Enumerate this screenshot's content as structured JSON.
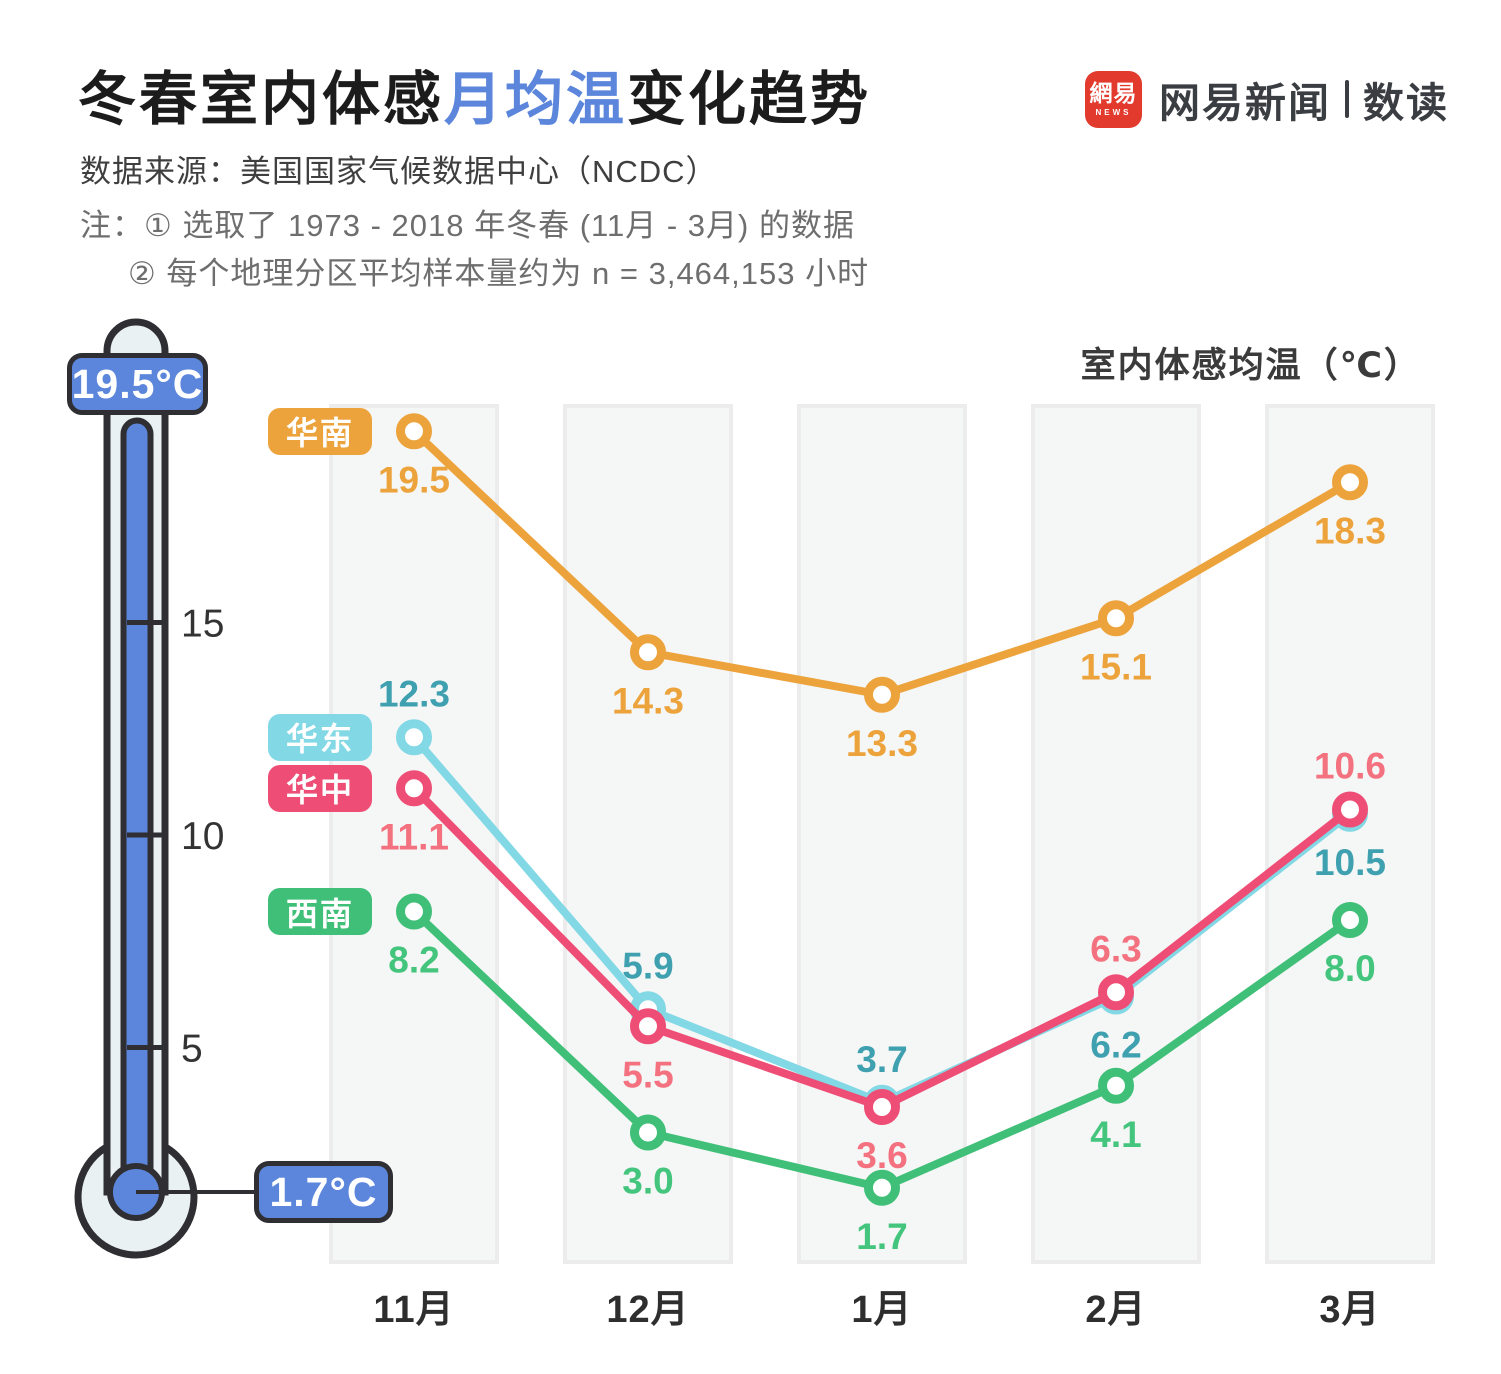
{
  "header": {
    "title_prefix": "冬春室内体感",
    "title_accent": "月均温",
    "title_suffix": "变化趋势",
    "accent_color": "#5B86DB",
    "source": "数据来源：美国国家气候数据中心（NCDC）",
    "note_line1": "注：① 选取了 1973 - 2018 年冬春 (11月 - 3月) 的数据",
    "note_line2": "② 每个地理分区平均样本量约为 n = 3,464,153 小时"
  },
  "brand": {
    "logo_square_text": "網易",
    "logo_square_subtext": "NEWS",
    "logo_square_color": "#E23B2E",
    "name": "网易新闻",
    "sub_brand": "数读"
  },
  "thermometer": {
    "max_label": "19.5°C",
    "min_label": "1.7°C",
    "fill_color": "#5B86DB",
    "scale_ticks": [
      {
        "label": "15",
        "temp": 15
      },
      {
        "label": "10",
        "temp": 10
      },
      {
        "label": "5",
        "temp": 5
      }
    ]
  },
  "chart_data": {
    "type": "line",
    "title": "冬春室内体感月均温变化趋势",
    "y_axis_title": "室内体感均温（℃）",
    "categories": [
      "11月",
      "12月",
      "1月",
      "2月",
      "3月"
    ],
    "ylim": [
      0,
      20
    ],
    "grid": "off",
    "legend_position": "left-of-first-point",
    "series": [
      {
        "name": "华东",
        "color": "#82D8E4",
        "label_color": "#3FA0B0",
        "values": [
          12.3,
          5.9,
          3.7,
          6.2,
          10.5
        ],
        "labels_above": [
          true,
          true,
          true,
          false,
          false
        ]
      },
      {
        "name": "西南",
        "color": "#3FBF77",
        "label_color": "#44C57D",
        "values": [
          8.2,
          3.0,
          1.7,
          4.1,
          8.0
        ],
        "labels_above": [
          false,
          false,
          false,
          false,
          false
        ]
      },
      {
        "name": "华南",
        "color": "#EDA33B",
        "label_color": "#EDA33B",
        "values": [
          19.5,
          14.3,
          13.3,
          15.1,
          18.3
        ],
        "labels_above": [
          false,
          false,
          false,
          false,
          false
        ]
      },
      {
        "name": "华中",
        "color": "#EE4E75",
        "label_color": "#F4717F",
        "values": [
          11.1,
          5.5,
          3.6,
          6.3,
          10.6
        ],
        "labels_above": [
          false,
          false,
          false,
          true,
          true
        ]
      }
    ]
  }
}
